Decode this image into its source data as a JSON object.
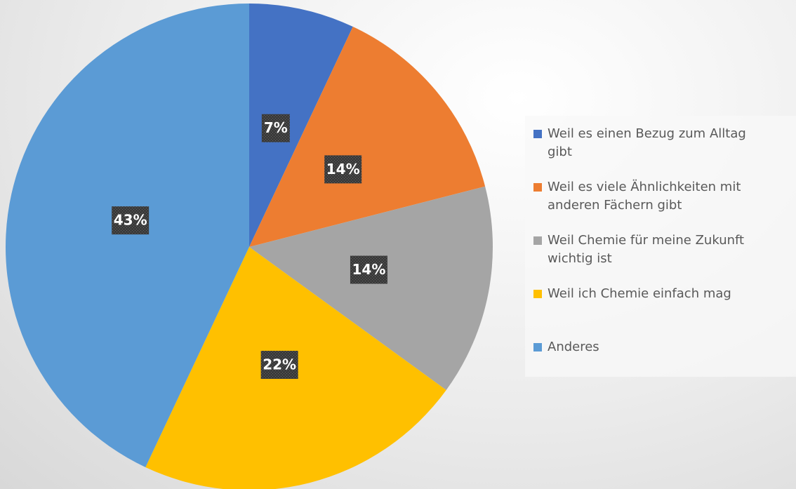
{
  "chart_data": {
    "type": "pie",
    "categories": [
      "Weil es einen Bezug zum Alltag gibt",
      "Weil es viele Ähnlichkeiten mit anderen Fächern gibt",
      "Weil Chemie für meine Zukunft wichtig ist",
      "Weil ich Chemie einfach mag",
      "Anderes"
    ],
    "values": [
      7,
      14,
      14,
      22,
      43
    ],
    "value_labels": [
      "7%",
      "14%",
      "14%",
      "22%",
      "43%"
    ],
    "colors": [
      "#4472c4",
      "#ed7d31",
      "#a5a5a5",
      "#ffc000",
      "#5b9bd5"
    ],
    "legend": "right"
  }
}
